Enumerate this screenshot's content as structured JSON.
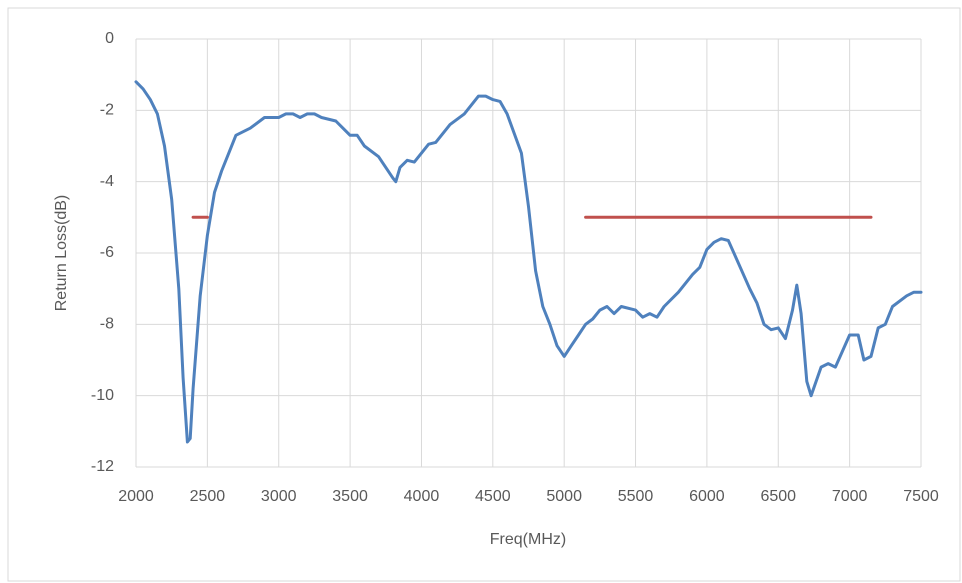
{
  "chart_data": {
    "type": "line",
    "x_label": "Freq(MHz)",
    "y_label": "Return Loss(dB)",
    "xlim": [
      2000,
      7500
    ],
    "xticks": [
      2000,
      2500,
      3000,
      3500,
      4000,
      4500,
      5000,
      5500,
      6000,
      6500,
      7000,
      7500
    ],
    "ylim": [
      -12,
      0
    ],
    "yticks": [
      0,
      -2,
      -4,
      -6,
      -8,
      -10,
      -12
    ],
    "grid": true,
    "series": [
      {
        "color": "#4f81bd",
        "x": [
          2000,
          2050,
          2100,
          2150,
          2200,
          2250,
          2300,
          2330,
          2360,
          2380,
          2400,
          2450,
          2500,
          2550,
          2600,
          2650,
          2700,
          2800,
          2900,
          3000,
          3050,
          3100,
          3150,
          3200,
          3250,
          3300,
          3400,
          3500,
          3550,
          3600,
          3700,
          3800,
          3820,
          3850,
          3900,
          3950,
          4000,
          4050,
          4100,
          4200,
          4300,
          4400,
          4450,
          4500,
          4550,
          4600,
          4700,
          4750,
          4800,
          4850,
          4900,
          4950,
          5000,
          5050,
          5100,
          5150,
          5200,
          5250,
          5300,
          5350,
          5400,
          5500,
          5550,
          5600,
          5650,
          5700,
          5800,
          5900,
          5950,
          6000,
          6050,
          6100,
          6150,
          6200,
          6300,
          6350,
          6400,
          6450,
          6500,
          6550,
          6600,
          6630,
          6660,
          6700,
          6730,
          6800,
          6850,
          6900,
          7000,
          7060,
          7100,
          7150,
          7200,
          7250,
          7300,
          7400,
          7450,
          7500
        ],
        "values": [
          -1.2,
          -1.4,
          -1.7,
          -2.1,
          -3.0,
          -4.5,
          -7.0,
          -9.5,
          -11.3,
          -11.2,
          -9.8,
          -7.2,
          -5.5,
          -4.3,
          -3.7,
          -3.2,
          -2.7,
          -2.5,
          -2.2,
          -2.2,
          -2.1,
          -2.1,
          -2.2,
          -2.1,
          -2.1,
          -2.2,
          -2.3,
          -2.7,
          -2.7,
          -3.0,
          -3.3,
          -3.9,
          -4.0,
          -3.6,
          -3.4,
          -3.45,
          -3.2,
          -2.95,
          -2.9,
          -2.4,
          -2.1,
          -1.6,
          -1.6,
          -1.7,
          -1.75,
          -2.1,
          -3.2,
          -4.7,
          -6.5,
          -7.5,
          -8.0,
          -8.6,
          -8.9,
          -8.6,
          -8.3,
          -8.0,
          -7.85,
          -7.6,
          -7.5,
          -7.7,
          -7.5,
          -7.6,
          -7.8,
          -7.7,
          -7.8,
          -7.5,
          -7.1,
          -6.6,
          -6.4,
          -5.9,
          -5.7,
          -5.6,
          -5.65,
          -6.1,
          -7.0,
          -7.4,
          -8.0,
          -8.15,
          -8.1,
          -8.4,
          -7.6,
          -6.9,
          -7.7,
          -9.6,
          -10.0,
          -9.2,
          -9.1,
          -9.2,
          -8.3,
          -8.3,
          -9.0,
          -8.9,
          -8.1,
          -8.0,
          -7.5,
          -7.2,
          -7.1,
          -7.1
        ]
      },
      {
        "color": "#c0504d",
        "x": [
          2400,
          2500
        ],
        "values": [
          -5,
          -5
        ]
      },
      {
        "color": "#c0504d",
        "x": [
          5150,
          7150
        ],
        "values": [
          -5,
          -5
        ]
      }
    ]
  }
}
